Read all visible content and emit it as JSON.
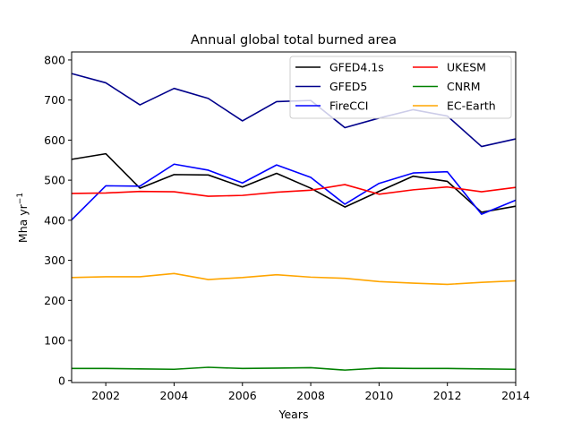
{
  "chart_data": {
    "type": "line",
    "title": "Annual global total burned area",
    "xlabel": "Years",
    "ylabel": "Mha yr",
    "ylabel_exponent": "−1",
    "xlim": [
      2001,
      2014
    ],
    "ylim": [
      -5,
      820
    ],
    "xticks": [
      2002,
      2004,
      2006,
      2008,
      2010,
      2012,
      2014
    ],
    "yticks": [
      0,
      100,
      200,
      300,
      400,
      500,
      600,
      700,
      800
    ],
    "grid": false,
    "legend_position": "top-right",
    "x": [
      2001,
      2002,
      2003,
      2004,
      2005,
      2006,
      2007,
      2008,
      2009,
      2010,
      2011,
      2012,
      2013,
      2014
    ],
    "series": [
      {
        "name": "GFED4.1s",
        "color": "#000000",
        "values": [
          552,
          566,
          480,
          514,
          513,
          483,
          517,
          480,
          433,
          472,
          510,
          497,
          420,
          435
        ]
      },
      {
        "name": "GFED5",
        "color": "#00008b",
        "values": [
          766,
          743,
          688,
          729,
          704,
          648,
          696,
          699,
          631,
          655,
          676,
          660,
          584,
          603
        ]
      },
      {
        "name": "FireCCI",
        "color": "#0000ff",
        "values": [
          401,
          486,
          485,
          540,
          525,
          493,
          538,
          507,
          440,
          492,
          518,
          521,
          415,
          450
        ]
      },
      {
        "name": "UKESM",
        "color": "#ff0000",
        "values": [
          467,
          468,
          472,
          471,
          460,
          462,
          470,
          475,
          489,
          465,
          476,
          483,
          471,
          482
        ]
      },
      {
        "name": "CNRM",
        "color": "#008000",
        "values": [
          30,
          30,
          29,
          28,
          33,
          30,
          31,
          32,
          26,
          31,
          30,
          30,
          29,
          28
        ]
      },
      {
        "name": "EC-Earth",
        "color": "#ffa500",
        "values": [
          257,
          259,
          259,
          267,
          252,
          257,
          264,
          258,
          255,
          247,
          243,
          240,
          245,
          249
        ]
      }
    ]
  }
}
